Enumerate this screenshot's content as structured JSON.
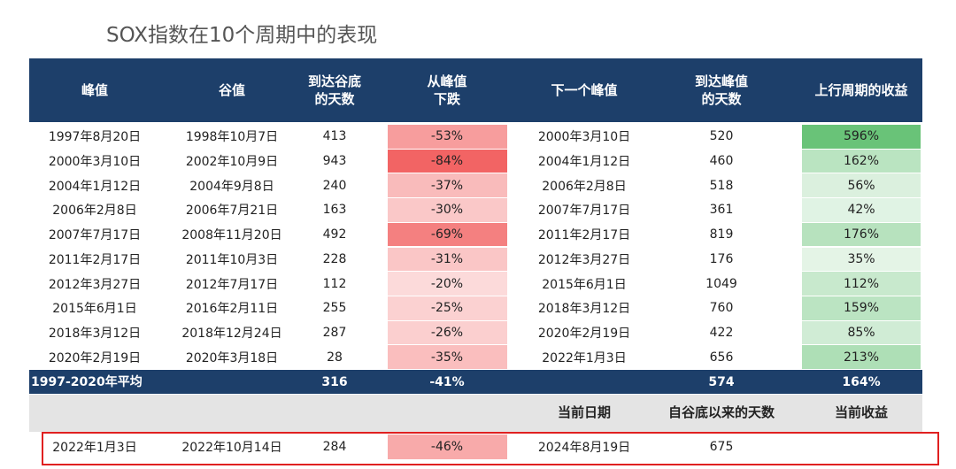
{
  "title": "SOX指数在10个周期中的表现",
  "table": {
    "header": [
      "峰值",
      "谷值",
      "到达谷底\n的天数",
      "从峰值\n下跌",
      "下一个峰值",
      "到达峰值\n的天数",
      "上行周期的收益"
    ],
    "rows": [
      [
        "1997年8月20日",
        "1998年10月7日",
        "413",
        "-53%",
        "2000年3月10日",
        "520",
        "596%"
      ],
      [
        "2000年3月10日",
        "2002年10月9日",
        "943",
        "-84%",
        "2004年1月12日",
        "460",
        "162%"
      ],
      [
        "2004年1月12日",
        "2004年9月8日",
        "240",
        "-37%",
        "2006年2月8日",
        "518",
        "56%"
      ],
      [
        "2006年2月8日",
        "2006年7月21日",
        "163",
        "-30%",
        "2007年7月17日",
        "361",
        "42%"
      ],
      [
        "2007年7月17日",
        "2008年11月20日",
        "492",
        "-69%",
        "2011年2月17日",
        "819",
        "176%"
      ],
      [
        "2011年2月17日",
        "2011年10月3日",
        "228",
        "-31%",
        "2012年3月27日",
        "176",
        "35%"
      ],
      [
        "2012年3月27日",
        "2012年7月17日",
        "112",
        "-20%",
        "2015年6月1日",
        "1049",
        "112%"
      ],
      [
        "2015年6月1日",
        "2016年2月11日",
        "255",
        "-25%",
        "2018年3月12日",
        "760",
        "159%"
      ],
      [
        "2018年3月12日",
        "2018年12月24日",
        "287",
        "-26%",
        "2020年2月19日",
        "422",
        "85%"
      ],
      [
        "2020年2月19日",
        "2020年3月18日",
        "28",
        "-35%",
        "2022年1月3日",
        "656",
        "213%"
      ]
    ],
    "average": [
      "1997-2020年平均",
      "316",
      "-41%",
      "574",
      "164%"
    ],
    "current_header": [
      "当前日期",
      "自谷底以来的天数",
      "当前收益"
    ],
    "current": [
      "2022年1月3日",
      "2022年10月14日",
      "284",
      "-46%",
      "2024年8月19日",
      "675"
    ]
  }
}
